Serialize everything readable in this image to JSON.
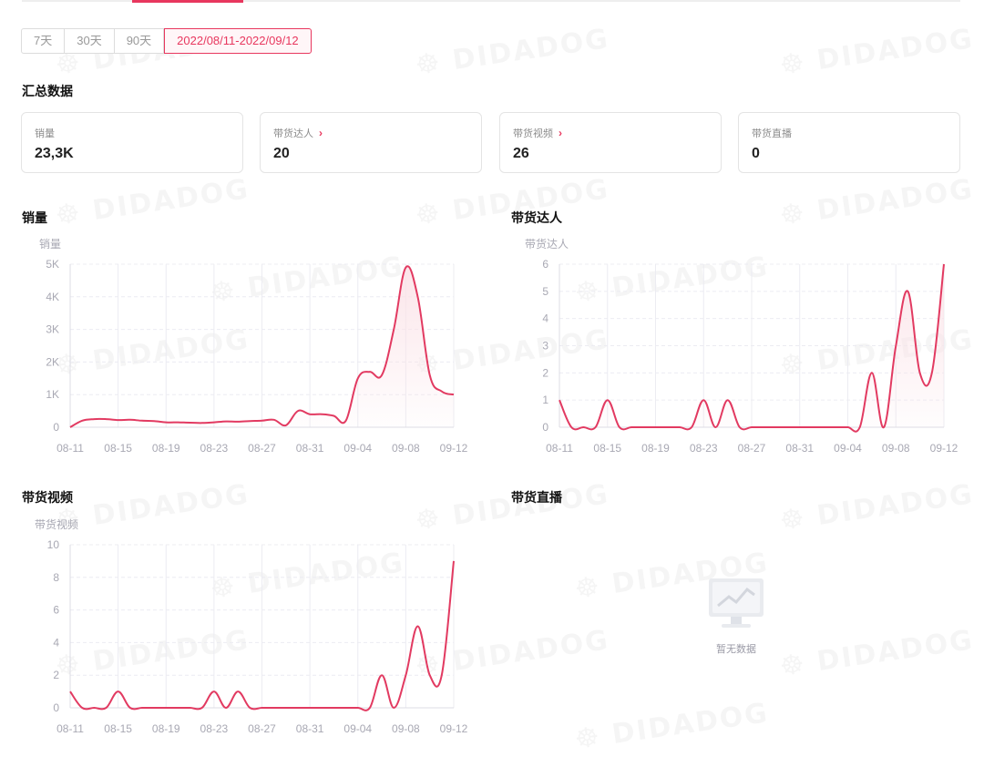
{
  "date_range": {
    "options": [
      "7天",
      "30天",
      "90天"
    ],
    "selected": "2022/08/11-2022/09/12"
  },
  "summary": {
    "title": "汇总数据",
    "cards": [
      {
        "label": "销量",
        "value": "23,3K",
        "link": false
      },
      {
        "label": "带货达人",
        "value": "20",
        "link": true
      },
      {
        "label": "带货视频",
        "value": "26",
        "link": true
      },
      {
        "label": "带货直播",
        "value": "0",
        "link": false
      }
    ]
  },
  "charts": {
    "sales_title": "销量",
    "influencers_title": "带货达人",
    "videos_title": "带货视频",
    "live_title": "带货直播",
    "live_empty_text": "暂无数据"
  },
  "watermark_text": "DIDADOG",
  "colors": {
    "accent": "#e8375e",
    "line": "#e23a61",
    "fill": "#fbe2e7"
  },
  "chart_data": [
    {
      "type": "area",
      "ylabel": "销量",
      "x": [
        "08-11",
        "08-12",
        "08-13",
        "08-14",
        "08-15",
        "08-16",
        "08-17",
        "08-18",
        "08-19",
        "08-20",
        "08-21",
        "08-22",
        "08-23",
        "08-24",
        "08-25",
        "08-26",
        "08-27",
        "08-28",
        "08-29",
        "08-30",
        "08-31",
        "09-01",
        "09-02",
        "09-03",
        "09-04",
        "09-05",
        "09-06",
        "09-07",
        "09-08",
        "09-09",
        "09-10",
        "09-11",
        "09-12"
      ],
      "xticks": [
        "08-11",
        "08-15",
        "08-19",
        "08-23",
        "08-27",
        "08-31",
        "09-04",
        "09-08",
        "09-12"
      ],
      "values": [
        0,
        200,
        250,
        250,
        220,
        230,
        200,
        190,
        150,
        150,
        140,
        130,
        150,
        180,
        170,
        190,
        200,
        230,
        60,
        500,
        400,
        400,
        350,
        200,
        1500,
        1700,
        1600,
        3000,
        4900,
        4000,
        1600,
        1100,
        1000
      ],
      "yticks": [
        "0",
        "1K",
        "2K",
        "3K",
        "4K",
        "5K"
      ],
      "ylim": [
        0,
        5000
      ]
    },
    {
      "type": "area",
      "ylabel": "带货达人",
      "x": [
        "08-11",
        "08-12",
        "08-13",
        "08-14",
        "08-15",
        "08-16",
        "08-17",
        "08-18",
        "08-19",
        "08-20",
        "08-21",
        "08-22",
        "08-23",
        "08-24",
        "08-25",
        "08-26",
        "08-27",
        "08-28",
        "08-29",
        "08-30",
        "08-31",
        "09-01",
        "09-02",
        "09-03",
        "09-04",
        "09-05",
        "09-06",
        "09-07",
        "09-08",
        "09-09",
        "09-10",
        "09-11",
        "09-12"
      ],
      "xticks": [
        "08-11",
        "08-15",
        "08-19",
        "08-23",
        "08-27",
        "08-31",
        "09-04",
        "09-08",
        "09-12"
      ],
      "values": [
        1,
        0,
        0,
        0,
        1,
        0,
        0,
        0,
        0,
        0,
        0,
        0,
        1,
        0,
        1,
        0,
        0,
        0,
        0,
        0,
        0,
        0,
        0,
        0,
        0,
        0,
        2,
        0,
        3,
        5,
        2,
        2,
        6
      ],
      "yticks": [
        "0",
        "1",
        "2",
        "3",
        "4",
        "5",
        "6"
      ],
      "ylim": [
        0,
        6
      ]
    },
    {
      "type": "line",
      "ylabel": "带货视频",
      "x": [
        "08-11",
        "08-12",
        "08-13",
        "08-14",
        "08-15",
        "08-16",
        "08-17",
        "08-18",
        "08-19",
        "08-20",
        "08-21",
        "08-22",
        "08-23",
        "08-24",
        "08-25",
        "08-26",
        "08-27",
        "08-28",
        "08-29",
        "08-30",
        "08-31",
        "09-01",
        "09-02",
        "09-03",
        "09-04",
        "09-05",
        "09-06",
        "09-07",
        "09-08",
        "09-09",
        "09-10",
        "09-11",
        "09-12"
      ],
      "xticks": [
        "08-11",
        "08-15",
        "08-19",
        "08-23",
        "08-27",
        "08-31",
        "09-04",
        "09-08",
        "09-12"
      ],
      "values": [
        1,
        0,
        0,
        0,
        1,
        0,
        0,
        0,
        0,
        0,
        0,
        0,
        1,
        0,
        1,
        0,
        0,
        0,
        0,
        0,
        0,
        0,
        0,
        0,
        0,
        0,
        2,
        0,
        2,
        5,
        2,
        2,
        9
      ],
      "yticks": [
        "0",
        "2",
        "4",
        "6",
        "8",
        "10"
      ],
      "ylim": [
        0,
        10
      ]
    }
  ]
}
